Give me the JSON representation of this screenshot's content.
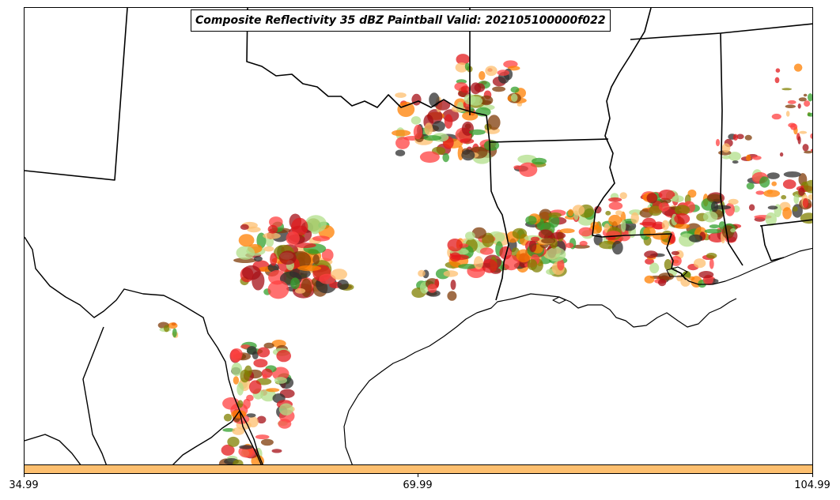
{
  "map": {
    "title": "Composite Reflectivity 35 dBZ Paintball Valid: 202105100000f022",
    "colorbar": {
      "color": "#fdbf6f",
      "tick_labels": [
        "34.99",
        "69.99",
        "104.99"
      ]
    },
    "member_colors": [
      "#e31a1c",
      "#ff7f00",
      "#fdbf6f",
      "#33a02c",
      "#b2df8a",
      "#a50f15",
      "#808000",
      "#2f2f2f",
      "#ff4040",
      "#7f3b08"
    ]
  }
}
